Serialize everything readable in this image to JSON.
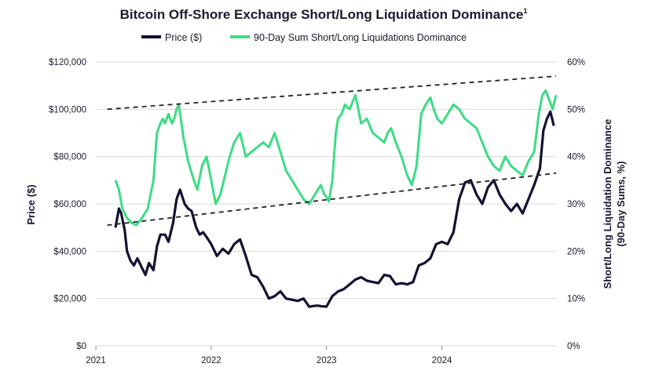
{
  "chart_data": {
    "type": "line",
    "title": "Bitcoin Off-Shore Exchange Short/Long Liquidation Dominance",
    "title_superscript": "1",
    "colors": {
      "price": "#111132",
      "dominance": "#3ddc84",
      "trendline": "#222222",
      "grid": "#d9d9d9",
      "text": "#1a1a2e"
    },
    "legend": [
      {
        "name": "Price ($)",
        "series": "price"
      },
      {
        "name": "90-Day Sum Short/Long Liquidations Dominance",
        "series": "dominance"
      }
    ],
    "legend_position": "top-center",
    "ylabel": "Price ($)",
    "y2label_line1": "Short/Long Liquidation Dominance",
    "y2label_line2": "(90-Day Sums, %)",
    "xlim": [
      2021.0,
      2024.99
    ],
    "ylim": [
      0,
      120000
    ],
    "y2lim": [
      0,
      60
    ],
    "x_ticks": [
      {
        "value": 2021,
        "label": "2021"
      },
      {
        "value": 2022,
        "label": "2022"
      },
      {
        "value": 2023,
        "label": "2023"
      },
      {
        "value": 2024,
        "label": "2024"
      }
    ],
    "y_ticks": [
      {
        "value": 0,
        "label": "$0"
      },
      {
        "value": 20000,
        "label": "$20,000"
      },
      {
        "value": 40000,
        "label": "$40,000"
      },
      {
        "value": 60000,
        "label": "$60,000"
      },
      {
        "value": 80000,
        "label": "$80,000"
      },
      {
        "value": 100000,
        "label": "$100,000"
      },
      {
        "value": 120000,
        "label": "$120,000"
      }
    ],
    "y2_ticks": [
      {
        "value": 0,
        "label": "0%"
      },
      {
        "value": 10,
        "label": "10%"
      },
      {
        "value": 20,
        "label": "20%"
      },
      {
        "value": 30,
        "label": "30%"
      },
      {
        "value": 40,
        "label": "40%"
      },
      {
        "value": 50,
        "label": "50%"
      },
      {
        "value": 60,
        "label": "60%"
      }
    ],
    "series": [
      {
        "name": "Price ($)",
        "axis": "left",
        "x": [
          2021.17,
          2021.2,
          2021.22,
          2021.25,
          2021.27,
          2021.3,
          2021.33,
          2021.36,
          2021.4,
          2021.43,
          2021.46,
          2021.5,
          2021.53,
          2021.56,
          2021.6,
          2021.63,
          2021.67,
          2021.7,
          2021.73,
          2021.77,
          2021.8,
          2021.83,
          2021.87,
          2021.9,
          2021.93,
          2021.96,
          2022.0,
          2022.05,
          2022.1,
          2022.15,
          2022.2,
          2022.25,
          2022.3,
          2022.35,
          2022.4,
          2022.45,
          2022.5,
          2022.55,
          2022.6,
          2022.65,
          2022.7,
          2022.75,
          2022.8,
          2022.85,
          2022.88,
          2022.92,
          2022.96,
          2023.0,
          2023.05,
          2023.1,
          2023.15,
          2023.2,
          2023.25,
          2023.3,
          2023.35,
          2023.4,
          2023.45,
          2023.5,
          2023.55,
          2023.6,
          2023.65,
          2023.7,
          2023.75,
          2023.8,
          2023.85,
          2023.9,
          2023.95,
          2024.0,
          2024.05,
          2024.1,
          2024.15,
          2024.2,
          2024.25,
          2024.3,
          2024.35,
          2024.4,
          2024.45,
          2024.5,
          2024.55,
          2024.6,
          2024.65,
          2024.7,
          2024.75,
          2024.8,
          2024.85,
          2024.88,
          2024.91,
          2024.94,
          2024.97
        ],
        "values": [
          50000,
          58000,
          56000,
          49000,
          40000,
          36000,
          34000,
          37000,
          33000,
          30000,
          35000,
          32000,
          42000,
          47000,
          47000,
          44000,
          52000,
          62000,
          66000,
          60000,
          58000,
          57000,
          50000,
          47000,
          48000,
          46000,
          43000,
          38000,
          41000,
          39000,
          43000,
          45000,
          38000,
          30000,
          29000,
          25000,
          20000,
          21000,
          23000,
          20000,
          19500,
          19000,
          20000,
          16500,
          16800,
          17000,
          16700,
          16600,
          21000,
          23000,
          24000,
          26000,
          28000,
          29000,
          27500,
          27000,
          26500,
          30000,
          29500,
          26000,
          26500,
          26000,
          27000,
          34000,
          35000,
          37000,
          43000,
          44000,
          43000,
          48000,
          62000,
          69000,
          70000,
          64000,
          60000,
          67000,
          70000,
          64000,
          60000,
          57000,
          60000,
          56000,
          62000,
          68000,
          75000,
          91000,
          96000,
          99000,
          93000
        ]
      },
      {
        "name": "90-Day Sum Short/Long Liquidations Dominance",
        "axis": "right",
        "x": [
          2021.17,
          2021.2,
          2021.23,
          2021.27,
          2021.31,
          2021.35,
          2021.4,
          2021.45,
          2021.5,
          2021.53,
          2021.56,
          2021.58,
          2021.6,
          2021.63,
          2021.66,
          2021.68,
          2021.7,
          2021.72,
          2021.76,
          2021.8,
          2021.85,
          2021.88,
          2021.92,
          2021.96,
          2022.0,
          2022.04,
          2022.08,
          2022.12,
          2022.16,
          2022.2,
          2022.25,
          2022.3,
          2022.35,
          2022.4,
          2022.45,
          2022.5,
          2022.55,
          2022.6,
          2022.65,
          2022.7,
          2022.75,
          2022.8,
          2022.85,
          2022.9,
          2022.95,
          2022.98,
          2023.0,
          2023.02,
          2023.05,
          2023.08,
          2023.1,
          2023.13,
          2023.16,
          2023.2,
          2023.25,
          2023.3,
          2023.35,
          2023.4,
          2023.45,
          2023.5,
          2023.53,
          2023.56,
          2023.6,
          2023.65,
          2023.7,
          2023.74,
          2023.78,
          2023.82,
          2023.86,
          2023.9,
          2023.93,
          2023.96,
          2024.0,
          2024.05,
          2024.1,
          2024.15,
          2024.2,
          2024.25,
          2024.3,
          2024.35,
          2024.4,
          2024.45,
          2024.5,
          2024.55,
          2024.6,
          2024.65,
          2024.7,
          2024.75,
          2024.8,
          2024.84,
          2024.87,
          2024.9,
          2024.93,
          2024.96,
          2024.99
        ],
        "values": [
          35,
          33,
          29,
          27,
          26,
          25.5,
          27,
          29,
          35,
          45,
          47,
          48,
          47,
          49,
          47,
          48,
          50,
          51,
          44,
          39,
          35,
          33,
          38,
          40,
          35,
          30,
          32,
          36,
          40,
          43,
          45,
          40,
          41,
          42,
          43,
          42,
          45,
          41,
          37,
          35,
          33,
          31,
          30,
          32,
          34,
          32,
          31.5,
          30.5,
          35,
          45,
          48,
          49,
          51,
          50,
          53,
          47,
          48,
          45,
          44,
          43,
          45,
          46,
          43,
          40,
          36,
          34,
          38,
          49,
          51,
          52.5,
          50,
          48,
          47,
          49,
          51,
          50,
          48,
          47,
          46,
          43,
          40,
          38,
          37,
          40,
          38,
          37,
          36,
          39,
          41,
          49,
          53,
          54,
          52,
          50,
          53
        ]
      }
    ],
    "trendlines": [
      {
        "name": "upper-channel",
        "x": [
          2021.1,
          2024.99
        ],
        "y2": [
          50,
          57
        ]
      },
      {
        "name": "lower-channel",
        "x": [
          2021.1,
          2024.99
        ],
        "y2": [
          25.5,
          36.5
        ]
      }
    ]
  }
}
